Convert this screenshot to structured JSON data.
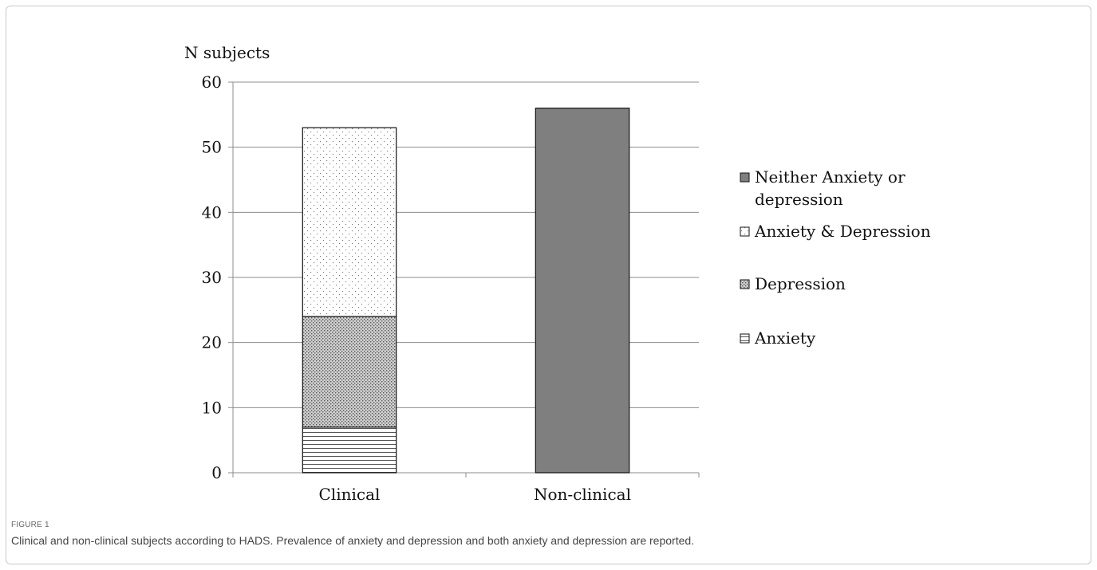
{
  "figure": {
    "label": "FIGURE 1",
    "caption": "Clinical and non-clinical subjects according to HADS. Prevalence of anxiety and depression and both anxiety and depression are reported."
  },
  "chart_data": {
    "type": "bar",
    "stacked": true,
    "ylabel": "N subjects",
    "xlabel": "",
    "ylim": [
      0,
      60
    ],
    "yticks": [
      0,
      10,
      20,
      30,
      40,
      50,
      60
    ],
    "grid": true,
    "legend_position": "right",
    "categories": [
      "Clinical",
      "Non-clinical"
    ],
    "series": [
      {
        "name": "Anxiety",
        "values": [
          7,
          0
        ],
        "pattern": "horizontal-lines",
        "color": "#ffffff"
      },
      {
        "name": "Depression",
        "values": [
          17,
          0
        ],
        "pattern": "crosshatch-dots",
        "color": "#bdbdbd"
      },
      {
        "name": "Anxiety & Depression",
        "values": [
          29,
          0
        ],
        "pattern": "sparse-dots",
        "color": "#ffffff"
      },
      {
        "name": "Neither Anxiety or depression",
        "values": [
          0,
          56
        ],
        "pattern": "solid",
        "color": "#7f7f7f"
      }
    ],
    "legend_order": [
      "Neither Anxiety or depression",
      "Anxiety & Depression",
      "Depression",
      "Anxiety"
    ]
  }
}
